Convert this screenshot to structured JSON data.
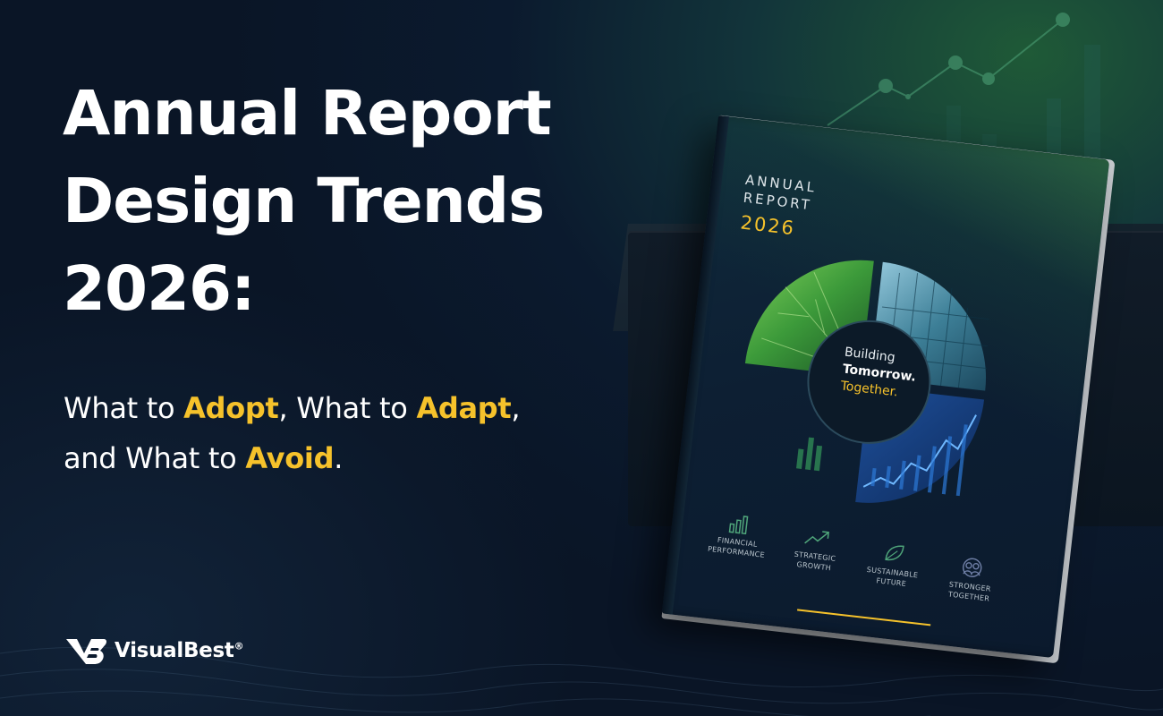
{
  "headline": {
    "line1": "Annual Report",
    "line2": "Design Trends",
    "line3": "2026:"
  },
  "subhead": {
    "l1_a": "What to ",
    "l1_b": "Adopt",
    "l1_c": ", What to ",
    "l1_d": "Adapt",
    "l1_e": ",",
    "l2_a": "and What to ",
    "l2_b": "Avoid",
    "l2_c": "."
  },
  "cover": {
    "annual": "ANNUAL",
    "report": "REPORT",
    "year": "2026",
    "tagline_1": "Building",
    "tagline_2": "Tomorrow.",
    "tagline_3": "Together.",
    "items": [
      {
        "label_1": "FINANCIAL",
        "label_2": "PERFORMANCE",
        "icon": "bar-chart-icon"
      },
      {
        "label_1": "STRATEGIC",
        "label_2": "GROWTH",
        "icon": "growth-arrow-icon"
      },
      {
        "label_1": "SUSTAINABLE",
        "label_2": "FUTURE",
        "icon": "leaf-icon"
      },
      {
        "label_1": "STRONGER",
        "label_2": "TOGETHER",
        "icon": "people-icon"
      }
    ]
  },
  "logo": {
    "text": "VisualBest",
    "mark": "®",
    "icon": "visualbest-logo-icon"
  },
  "colors": {
    "accent": "#f6c22b",
    "background": "#0b1a2e",
    "green": "#3a8a4e"
  }
}
